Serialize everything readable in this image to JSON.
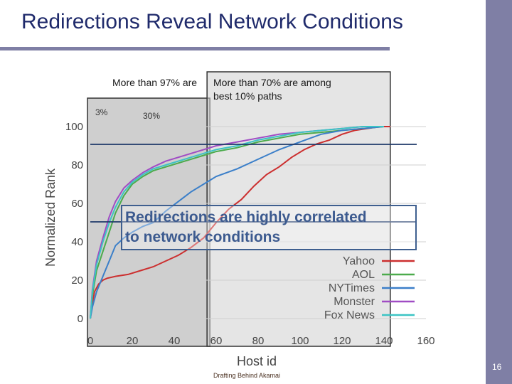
{
  "slide": {
    "title": "Redirections Reveal Network Conditions",
    "footer": "Drafting Behind Akamai",
    "page_number": "16"
  },
  "annotations": {
    "top_a": "More than 97% are",
    "top_b": "More than 70% are among",
    "top_c": "best 10% paths",
    "mark_a": "3%",
    "mark_b": "30%",
    "callout_line1": "Redirections are highly correlated",
    "callout_line2": "to network conditions"
  },
  "chart_data": {
    "type": "line",
    "xlabel": "Host id",
    "ylabel": "Normalized Rank",
    "xlim": [
      0,
      160
    ],
    "ylim": [
      0,
      100
    ],
    "xticks": [
      0,
      20,
      40,
      60,
      80,
      100,
      120,
      140,
      160
    ],
    "yticks": [
      0,
      20,
      40,
      60,
      80,
      100
    ],
    "legend_position": "bottom-right",
    "threshold_lines": [
      90,
      60
    ],
    "shaded_regions": [
      [
        0,
        57
      ],
      [
        57,
        143
      ]
    ],
    "series": [
      {
        "name": "Yahoo",
        "color": "#cc2f2f",
        "x": [
          0,
          1,
          2,
          4,
          6,
          8,
          12,
          18,
          24,
          30,
          36,
          42,
          48,
          54,
          60,
          66,
          72,
          78,
          84,
          90,
          96,
          102,
          108,
          114,
          120,
          126,
          132,
          138,
          143
        ],
        "y": [
          0,
          8,
          14,
          18,
          20,
          21,
          22,
          23,
          25,
          27,
          30,
          33,
          37,
          42,
          50,
          57,
          62,
          69,
          75,
          79,
          84,
          88,
          91,
          93,
          96,
          98,
          99,
          100,
          100
        ]
      },
      {
        "name": "AOL",
        "color": "#4cab4c",
        "x": [
          0,
          1,
          3,
          6,
          9,
          12,
          16,
          20,
          25,
          30,
          36,
          42,
          48,
          54,
          60,
          70,
          80,
          90,
          100,
          110,
          120,
          130,
          140
        ],
        "y": [
          0,
          12,
          25,
          35,
          45,
          55,
          64,
          70,
          74,
          77,
          79,
          81,
          83,
          85,
          87,
          89,
          92,
          94,
          96,
          97,
          98,
          99,
          100
        ]
      },
      {
        "name": "NYTimes",
        "color": "#3b7fc9",
        "x": [
          0,
          1,
          3,
          6,
          9,
          12,
          16,
          20,
          25,
          30,
          36,
          42,
          48,
          54,
          60,
          70,
          80,
          90,
          100,
          110,
          120,
          130,
          140
        ],
        "y": [
          0,
          6,
          14,
          22,
          30,
          38,
          42,
          45,
          48,
          50,
          56,
          61,
          66,
          70,
          74,
          78,
          83,
          88,
          92,
          96,
          98,
          99,
          100
        ]
      },
      {
        "name": "Monster",
        "color": "#a04cc4",
        "x": [
          0,
          1,
          3,
          6,
          9,
          12,
          16,
          20,
          25,
          30,
          36,
          42,
          48,
          54,
          60,
          70,
          80,
          90,
          100,
          110,
          120,
          130,
          140
        ],
        "y": [
          0,
          15,
          30,
          42,
          53,
          61,
          68,
          72,
          76,
          79,
          82,
          84,
          86,
          88,
          90,
          92,
          94,
          96,
          97,
          98,
          99,
          100,
          100
        ]
      },
      {
        "name": "Fox News",
        "color": "#3cc4c4",
        "x": [
          0,
          1,
          3,
          6,
          9,
          12,
          16,
          20,
          25,
          30,
          36,
          42,
          48,
          54,
          60,
          70,
          80,
          90,
          100,
          110,
          120,
          130,
          140
        ],
        "y": [
          0,
          14,
          28,
          40,
          50,
          58,
          66,
          71,
          75,
          78,
          80,
          82,
          84,
          86,
          88,
          90,
          93,
          95,
          97,
          98,
          99,
          100,
          100
        ]
      }
    ]
  }
}
